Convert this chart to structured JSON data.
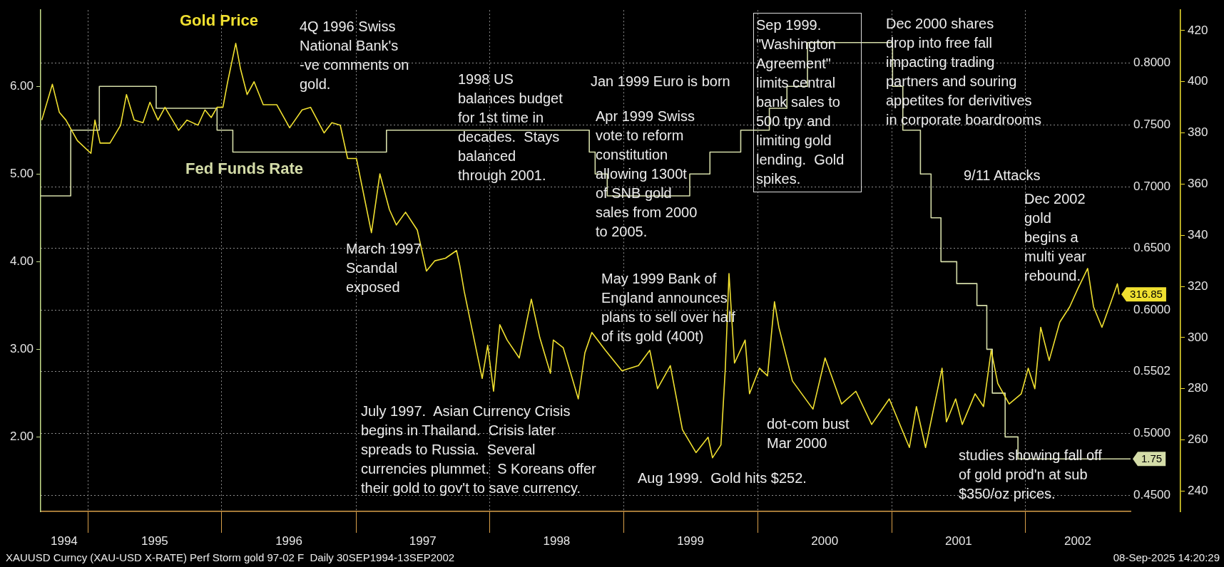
{
  "chart_data": {
    "type": "line",
    "xlim": [
      "1994-08-25",
      "2002-10-14"
    ],
    "xticks": [
      {
        "value": "1994-10-28",
        "label": "1994"
      },
      {
        "value": "1995-01-01",
        "label": null
      },
      {
        "value": "1995-07-02",
        "label": "1995"
      },
      {
        "value": "1996-01-01",
        "label": null
      },
      {
        "value": "1996-07-02",
        "label": "1996"
      },
      {
        "value": "1997-01-01",
        "label": null
      },
      {
        "value": "1997-07-02",
        "label": "1997"
      },
      {
        "value": "1998-01-01",
        "label": null
      },
      {
        "value": "1998-07-02",
        "label": "1998"
      },
      {
        "value": "1999-01-01",
        "label": null
      },
      {
        "value": "1999-07-02",
        "label": "1999"
      },
      {
        "value": "2000-01-01",
        "label": null
      },
      {
        "value": "2000-07-02",
        "label": "2000"
      },
      {
        "value": "2001-01-01",
        "label": null
      },
      {
        "value": "2001-07-02",
        "label": "2001"
      },
      {
        "value": "2002-01-01",
        "label": null
      },
      {
        "value": "2002-05-23",
        "label": "2002"
      }
    ],
    "ylim": [
      1.15,
      6.87
    ],
    "yticks": [
      {
        "value": 2,
        "label": "2.00"
      },
      {
        "value": 3,
        "label": "3.00"
      },
      {
        "value": 4,
        "label": "4.00"
      },
      {
        "value": 5,
        "label": "5.00"
      },
      {
        "value": 6,
        "label": "6.00"
      }
    ],
    "y2lim": [
      232,
      428
    ],
    "y2ticks": [
      240,
      260,
      280,
      300,
      320,
      340,
      360,
      380,
      400,
      420
    ],
    "y3lim": [
      0.437,
      0.843
    ],
    "y3ticks": [
      {
        "value": 0.45,
        "label": "0.4500"
      },
      {
        "value": 0.5,
        "label": "0.5000"
      },
      {
        "value": 0.5502,
        "label": "0.5502"
      },
      {
        "value": 0.6,
        "label": "0.6000"
      },
      {
        "value": 0.65,
        "label": "0.6500"
      },
      {
        "value": 0.7,
        "label": "0.7000"
      },
      {
        "value": 0.75,
        "label": "0.7500"
      },
      {
        "value": 0.8,
        "label": "0.8000"
      }
    ],
    "grid": true,
    "series": [
      {
        "name": "Gold Price",
        "type": "line",
        "axis": "y2",
        "color": "#f0e030",
        "x": [
          "1994-08-28",
          "1994-09-26",
          "1994-10-15",
          "1994-11-02",
          "1994-12-03",
          "1995-01-09",
          "1995-01-20",
          "1995-02-03",
          "1995-03-02",
          "1995-03-31",
          "1995-04-16",
          "1995-05-07",
          "1995-05-31",
          "1995-06-19",
          "1995-07-11",
          "1995-07-30",
          "1995-09-05",
          "1995-09-28",
          "1995-10-28",
          "1995-11-16",
          "1995-12-03",
          "1995-12-19",
          "1996-01-04",
          "1996-01-17",
          "1996-02-08",
          "1996-02-21",
          "1996-03-10",
          "1996-03-29",
          "1996-04-23",
          "1996-05-30",
          "1996-07-04",
          "1996-08-07",
          "1996-08-30",
          "1996-10-06",
          "1996-10-27",
          "1996-11-19",
          "1996-12-09",
          "1997-01-02",
          "1997-02-12",
          "1997-03-07",
          "1997-04-02",
          "1997-04-21",
          "1997-05-16",
          "1997-06-17",
          "1997-07-12",
          "1997-08-04",
          "1997-09-02",
          "1997-10-02",
          "1997-10-11",
          "1997-10-23",
          "1997-12-11",
          "1997-12-26",
          "1998-01-11",
          "1998-01-28",
          "1998-02-17",
          "1998-03-22",
          "1998-04-24",
          "1998-05-17",
          "1998-06-15",
          "1998-06-23",
          "1998-07-20",
          "1998-08-30",
          "1998-09-17",
          "1998-10-06",
          "1998-11-12",
          "1998-12-27",
          "1999-02-10",
          "1999-03-13",
          "1999-04-03",
          "1999-05-08",
          "1999-06-10",
          "1999-07-17",
          "1999-08-19",
          "1999-08-31",
          "1999-09-23",
          "1999-10-05",
          "1999-10-15",
          "1999-10-30",
          "1999-11-28",
          "1999-12-10",
          "2000-01-06",
          "2000-01-28",
          "2000-02-16",
          "2000-02-28",
          "2000-04-05",
          "2000-05-31",
          "2000-07-03",
          "2000-08-17",
          "2000-09-25",
          "2000-11-07",
          "2000-12-25",
          "2001-02-18",
          "2001-03-09",
          "2001-04-03",
          "2001-05-18",
          "2001-05-30",
          "2001-06-24",
          "2001-07-12",
          "2001-08-16",
          "2001-09-08",
          "2001-09-29",
          "2001-10-17",
          "2001-11-17",
          "2001-12-20",
          "2002-01-08",
          "2002-01-26",
          "2002-02-11",
          "2002-03-06",
          "2002-04-04",
          "2002-05-01",
          "2002-05-23",
          "2002-06-19",
          "2002-07-05",
          "2002-07-28",
          "2002-08-22",
          "2002-09-08",
          "2002-09-13"
        ],
        "values": [
          385,
          399,
          388,
          385,
          377,
          372,
          385,
          376,
          376,
          383,
          395,
          385,
          384,
          392,
          385,
          390,
          381,
          385,
          383,
          389,
          386,
          390,
          390,
          400,
          415,
          405,
          395,
          400,
          391,
          391,
          382,
          389,
          390,
          380,
          384,
          383,
          370,
          370,
          341,
          364,
          350,
          344,
          349,
          342,
          326,
          330,
          331,
          334,
          328,
          318,
          284,
          297,
          279,
          305,
          299,
          292,
          315,
          300,
          286,
          299,
          296,
          276,
          294,
          302,
          295,
          287,
          289,
          295,
          280,
          289,
          264,
          255,
          261,
          253,
          258,
          288,
          325,
          290,
          299,
          278,
          288,
          285,
          314,
          304,
          283,
          272,
          292,
          274,
          279,
          266,
          276,
          257,
          273,
          257,
          288,
          267,
          276,
          266,
          278,
          273,
          295,
          282,
          274,
          278,
          288,
          280,
          304,
          291,
          306,
          312,
          319,
          327,
          312,
          304,
          314,
          321,
          316.85
        ],
        "value_labels": [
          null,
          null,
          null,
          null,
          null,
          null,
          null,
          null,
          null,
          null,
          null,
          null,
          null,
          null,
          null,
          null,
          null,
          null,
          null,
          null,
          null,
          null,
          null,
          null,
          null,
          null,
          null,
          null,
          null,
          null,
          null,
          null,
          null,
          null,
          null,
          null,
          null,
          null,
          null,
          null,
          null,
          null,
          null,
          null,
          null,
          null,
          null,
          null,
          null,
          null,
          null,
          null,
          null,
          null,
          null,
          null,
          null,
          null,
          null,
          null,
          null,
          null,
          null,
          null,
          null,
          null,
          null,
          null,
          null,
          null,
          null,
          null,
          null,
          null,
          null,
          null,
          null,
          null,
          null,
          null,
          null,
          null,
          null,
          null,
          null,
          null,
          null,
          null,
          null,
          null,
          null,
          null,
          null,
          null,
          null,
          null,
          null,
          null,
          null,
          null,
          null,
          null,
          null,
          null,
          null,
          null,
          null,
          null,
          null,
          null,
          null,
          null,
          null,
          null,
          null,
          null,
          "316.85"
        ]
      },
      {
        "name": "Fed Funds Rate",
        "type": "step",
        "color": "#d4dca8",
        "x": [
          "1994-08-25",
          "1994-11-15",
          "1995-02-01",
          "1995-07-06",
          "1995-12-19",
          "1996-01-31",
          "1997-03-25",
          "1998-09-29",
          "1998-10-15",
          "1998-11-17",
          "1999-06-30",
          "1999-08-24",
          "1999-11-16",
          "2000-02-02",
          "2000-03-21",
          "2000-05-16",
          "2001-01-03",
          "2001-01-31",
          "2001-03-20",
          "2001-04-18",
          "2001-05-15",
          "2001-06-27",
          "2001-08-21",
          "2001-09-17",
          "2001-10-02",
          "2001-11-06",
          "2001-12-11",
          "2002-10-14"
        ],
        "values": [
          4.75,
          5.5,
          6,
          5.75,
          5.5,
          5.25,
          5.5,
          5.25,
          5,
          4.75,
          5,
          5.25,
          5.5,
          5.75,
          6,
          6.5,
          6,
          5.5,
          5,
          4.5,
          4,
          3.75,
          3.5,
          3,
          2.5,
          2,
          1.75,
          1.75
        ],
        "value_labels": [
          null,
          null,
          null,
          null,
          null,
          null,
          null,
          null,
          null,
          null,
          null,
          null,
          null,
          null,
          null,
          null,
          null,
          null,
          null,
          null,
          null,
          null,
          null,
          null,
          null,
          null,
          null,
          "1.75"
        ]
      }
    ],
    "annotations": [
      "4Q 1996 Swiss\nNational Bank's\n-ve comments on\ngold.",
      "1998 US\nbalances budget\nfor 1st time in\ndecades.  Stays\nbalanced\nthrough 2001.",
      "Jan 1999 Euro is born",
      "Apr 1999 Swiss\nvote to reform\nconstitution\nallowing 1300t\nof SNB gold\nsales from 2000\nto 2005.",
      "Sep 1999.\n\"Washington\nAgreement\"\nlimits central\nbank sales to\n500 tpy and\nlimiting gold\nlending.  Gold\nspikes.",
      "Dec 2000 shares\ndrop into free fall\nimpacting trading\npartners and souring\nappetites for derivitives\nin corporate boardrooms",
      "9/11 Attacks",
      "Dec 2002\ngold\nbegins a\nmulti year\nrebound.",
      "March 1997\nScandal\nexposed",
      "May 1999 Bank of\nEngland announces\nplans to sell over half\nof its gold (400t)",
      "July 1997.  Asian Currency Crisis\nbegins in Thailand.  Crisis later\nspreads to Russia.  Several\ncurrencies plummet.  S Koreans offer\ntheir gold to gov't to save currency.",
      "dot-com bust\nMar 2000",
      "Aug 1999.  Gold hits $252.",
      "studies showing fall off\nof gold prod'n at sub\n$350/oz prices.",
      "XAUUSD Curncy (XAU-USD X-RATE) Perf Storm gold 97-02 F  Daily 30SEP1994-13SEP2002",
      "08-Sep-2025 14:20:29"
    ]
  }
}
